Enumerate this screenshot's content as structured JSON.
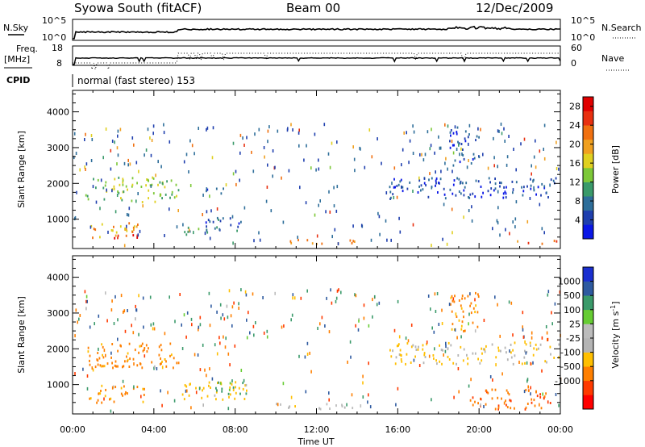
{
  "header": {
    "station": "Syowa South (fitACF)",
    "beam": "Beam 00",
    "date": "12/Dec/2009"
  },
  "strips": {
    "nsky_label": "N.Sky",
    "nsky_ticks": [
      "10^5",
      "10^0"
    ],
    "nsearch_label": "N.Search",
    "nsearch_ticks": [
      "10^5",
      "10^0"
    ],
    "freq_label": "Freq.",
    "freq_unit": "[MHz]",
    "freq_ticks": [
      "18",
      "8"
    ],
    "nave_label": "Nave",
    "nave_ticks": [
      "60",
      "0"
    ],
    "cpid_label": "CPID",
    "cpid_text": "normal (fast stereo) 153"
  },
  "colors": {
    "power_scale": [
      "#0a17e6",
      "#1f3fae",
      "#2e6e9a",
      "#3a9a6a",
      "#7dc838",
      "#e0d020",
      "#f0a020",
      "#f07010",
      "#e83010",
      "#e00000"
    ],
    "velocity_scale": [
      "#ff0000",
      "#ff3a00",
      "#ff7f00",
      "#ffbf00",
      "#b4b4b4",
      "#bcbcbc",
      "#66cc33",
      "#3a9a6a",
      "#2e5aa0",
      "#1a2fd0"
    ]
  },
  "chart_data": [
    {
      "type": "heatmap",
      "panel": "power",
      "xlabel": "Time UT",
      "ylabel": "Slant Range [km]",
      "xlim": [
        0,
        24
      ],
      "ylim": [
        180,
        4600
      ],
      "x_ticks": [
        "00:00",
        "04:00",
        "08:00",
        "12:00",
        "16:00",
        "20:00",
        "00:00"
      ],
      "y_ticks": [
        1000,
        2000,
        3000,
        4000
      ],
      "colorbar": {
        "label": "Power [dB]",
        "ticks": [
          4,
          8,
          12,
          16,
          20,
          24,
          28
        ],
        "range": [
          0,
          30
        ]
      },
      "echo_regions": [
        {
          "t0": 0.6,
          "t1": 5.2,
          "r0": 1500,
          "r1": 2200,
          "value": 14
        },
        {
          "t0": 0.8,
          "t1": 3.5,
          "r0": 500,
          "r1": 1000,
          "value": 20
        },
        {
          "t0": 1.8,
          "t1": 3.2,
          "r0": 500,
          "r1": 650,
          "value": 27
        },
        {
          "t0": 5.3,
          "t1": 7.0,
          "r0": 600,
          "r1": 800,
          "value": 10
        },
        {
          "t0": 6.5,
          "t1": 8.6,
          "r0": 700,
          "r1": 1100,
          "value": 6
        },
        {
          "t0": 5.8,
          "t1": 7.4,
          "r0": 1750,
          "r1": 1900,
          "value": 5
        },
        {
          "t0": 10.5,
          "t1": 14.0,
          "r0": 330,
          "r1": 450,
          "value": 20
        },
        {
          "t0": 15.5,
          "t1": 24.0,
          "r0": 1600,
          "r1": 2200,
          "value": 5
        },
        {
          "t0": 20.0,
          "t1": 24.0,
          "r0": 330,
          "r1": 450,
          "value": 22
        },
        {
          "t0": 18.5,
          "t1": 20.0,
          "r0": 2500,
          "r1": 3600,
          "value": 5
        }
      ]
    },
    {
      "type": "heatmap",
      "panel": "velocity",
      "xlabel": "Time UT",
      "ylabel": "Slant Range [km]",
      "xlim": [
        0,
        24
      ],
      "ylim": [
        180,
        4600
      ],
      "x_ticks": [
        "00:00",
        "04:00",
        "08:00",
        "12:00",
        "16:00",
        "20:00",
        "00:00"
      ],
      "y_ticks": [
        1000,
        2000,
        3000,
        4000
      ],
      "colorbar": {
        "label": "Velocity [m s^-1]",
        "ticks": [
          "1000",
          "500",
          "100",
          "25",
          "-25",
          "-100",
          "-500",
          "-1000"
        ]
      },
      "echo_regions": [
        {
          "t0": 0.6,
          "t1": 5.2,
          "r0": 1500,
          "r1": 2200,
          "value": -200
        },
        {
          "t0": 0.8,
          "t1": 3.5,
          "r0": 500,
          "r1": 1000,
          "value": -150
        },
        {
          "t0": 5.3,
          "t1": 8.6,
          "r0": 600,
          "r1": 1100,
          "value": -60
        },
        {
          "t0": 7.0,
          "t1": 8.6,
          "r0": 700,
          "r1": 1100,
          "value": 200
        },
        {
          "t0": 10.0,
          "t1": 14.0,
          "r0": 330,
          "r1": 500,
          "value": 0
        },
        {
          "t0": 15.5,
          "t1": 24.0,
          "r0": 1600,
          "r1": 2200,
          "value": -30
        },
        {
          "t0": 19.5,
          "t1": 24.0,
          "r0": 330,
          "r1": 900,
          "value": -400
        },
        {
          "t0": 18.5,
          "t1": 20.0,
          "r0": 2500,
          "r1": 3600,
          "value": -150
        }
      ]
    }
  ]
}
